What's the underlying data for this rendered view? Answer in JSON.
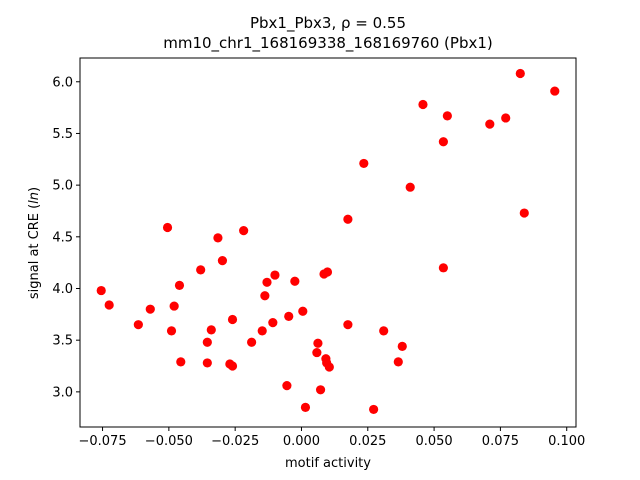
{
  "chart_data": {
    "type": "scatter",
    "title_line1": "Pbx1_Pbx3, ρ = 0.55",
    "title_line2": "mm10_chr1_168169338_168169760 (Pbx1)",
    "xlabel": "motif activity",
    "ylabel_prefix": "signal at CRE (",
    "ylabel_italic": "ln",
    "ylabel_suffix": ")",
    "xlim": [
      -0.0835,
      0.1035
    ],
    "ylim": [
      2.66,
      6.23
    ],
    "x_ticks": [
      {
        "value": -0.075,
        "label": "−0.075"
      },
      {
        "value": -0.05,
        "label": "−0.050"
      },
      {
        "value": -0.025,
        "label": "−0.025"
      },
      {
        "value": 0.0,
        "label": "0.000"
      },
      {
        "value": 0.025,
        "label": "0.025"
      },
      {
        "value": 0.05,
        "label": "0.050"
      },
      {
        "value": 0.075,
        "label": "0.075"
      },
      {
        "value": 0.1,
        "label": "0.100"
      }
    ],
    "y_ticks": [
      {
        "value": 3.0,
        "label": "3.0"
      },
      {
        "value": 3.5,
        "label": "3.5"
      },
      {
        "value": 4.0,
        "label": "4.0"
      },
      {
        "value": 4.5,
        "label": "4.5"
      },
      {
        "value": 5.0,
        "label": "5.0"
      },
      {
        "value": 5.5,
        "label": "5.5"
      },
      {
        "value": 6.0,
        "label": "6.0"
      }
    ],
    "grid": false,
    "marker_color": "#ff0000",
    "points": [
      {
        "x": -0.0755,
        "y": 3.98
      },
      {
        "x": -0.0725,
        "y": 3.84
      },
      {
        "x": -0.0615,
        "y": 3.65
      },
      {
        "x": -0.057,
        "y": 3.8
      },
      {
        "x": -0.0505,
        "y": 4.59
      },
      {
        "x": -0.049,
        "y": 3.59
      },
      {
        "x": -0.048,
        "y": 3.83
      },
      {
        "x": -0.046,
        "y": 4.03
      },
      {
        "x": -0.0455,
        "y": 3.29
      },
      {
        "x": -0.038,
        "y": 4.18
      },
      {
        "x": -0.0355,
        "y": 3.48
      },
      {
        "x": -0.0355,
        "y": 3.28
      },
      {
        "x": -0.034,
        "y": 3.6
      },
      {
        "x": -0.0315,
        "y": 4.49
      },
      {
        "x": -0.0298,
        "y": 4.27
      },
      {
        "x": -0.027,
        "y": 3.27
      },
      {
        "x": -0.026,
        "y": 3.7
      },
      {
        "x": -0.026,
        "y": 3.25
      },
      {
        "x": -0.0218,
        "y": 4.56
      },
      {
        "x": -0.0188,
        "y": 3.48
      },
      {
        "x": -0.0148,
        "y": 3.59
      },
      {
        "x": -0.0138,
        "y": 3.93
      },
      {
        "x": -0.013,
        "y": 4.06
      },
      {
        "x": -0.0108,
        "y": 3.67
      },
      {
        "x": -0.01,
        "y": 4.13
      },
      {
        "x": -0.0055,
        "y": 3.06
      },
      {
        "x": -0.0048,
        "y": 3.73
      },
      {
        "x": -0.0025,
        "y": 4.07
      },
      {
        "x": 0.0005,
        "y": 3.78
      },
      {
        "x": 0.0015,
        "y": 2.85
      },
      {
        "x": 0.0058,
        "y": 3.38
      },
      {
        "x": 0.0062,
        "y": 3.47
      },
      {
        "x": 0.0072,
        "y": 3.02
      },
      {
        "x": 0.0085,
        "y": 4.14
      },
      {
        "x": 0.0092,
        "y": 3.32
      },
      {
        "x": 0.0095,
        "y": 3.28
      },
      {
        "x": 0.0098,
        "y": 4.16
      },
      {
        "x": 0.0105,
        "y": 3.24
      },
      {
        "x": 0.0175,
        "y": 4.67
      },
      {
        "x": 0.0175,
        "y": 3.65
      },
      {
        "x": 0.0235,
        "y": 5.21
      },
      {
        "x": 0.0272,
        "y": 2.83
      },
      {
        "x": 0.031,
        "y": 3.59
      },
      {
        "x": 0.0365,
        "y": 3.29
      },
      {
        "x": 0.038,
        "y": 3.44
      },
      {
        "x": 0.041,
        "y": 4.98
      },
      {
        "x": 0.0458,
        "y": 5.78
      },
      {
        "x": 0.0535,
        "y": 5.42
      },
      {
        "x": 0.0535,
        "y": 4.2
      },
      {
        "x": 0.055,
        "y": 5.67
      },
      {
        "x": 0.071,
        "y": 5.59
      },
      {
        "x": 0.077,
        "y": 5.65
      },
      {
        "x": 0.0825,
        "y": 6.08
      },
      {
        "x": 0.084,
        "y": 4.73
      },
      {
        "x": 0.0955,
        "y": 5.91
      }
    ]
  }
}
